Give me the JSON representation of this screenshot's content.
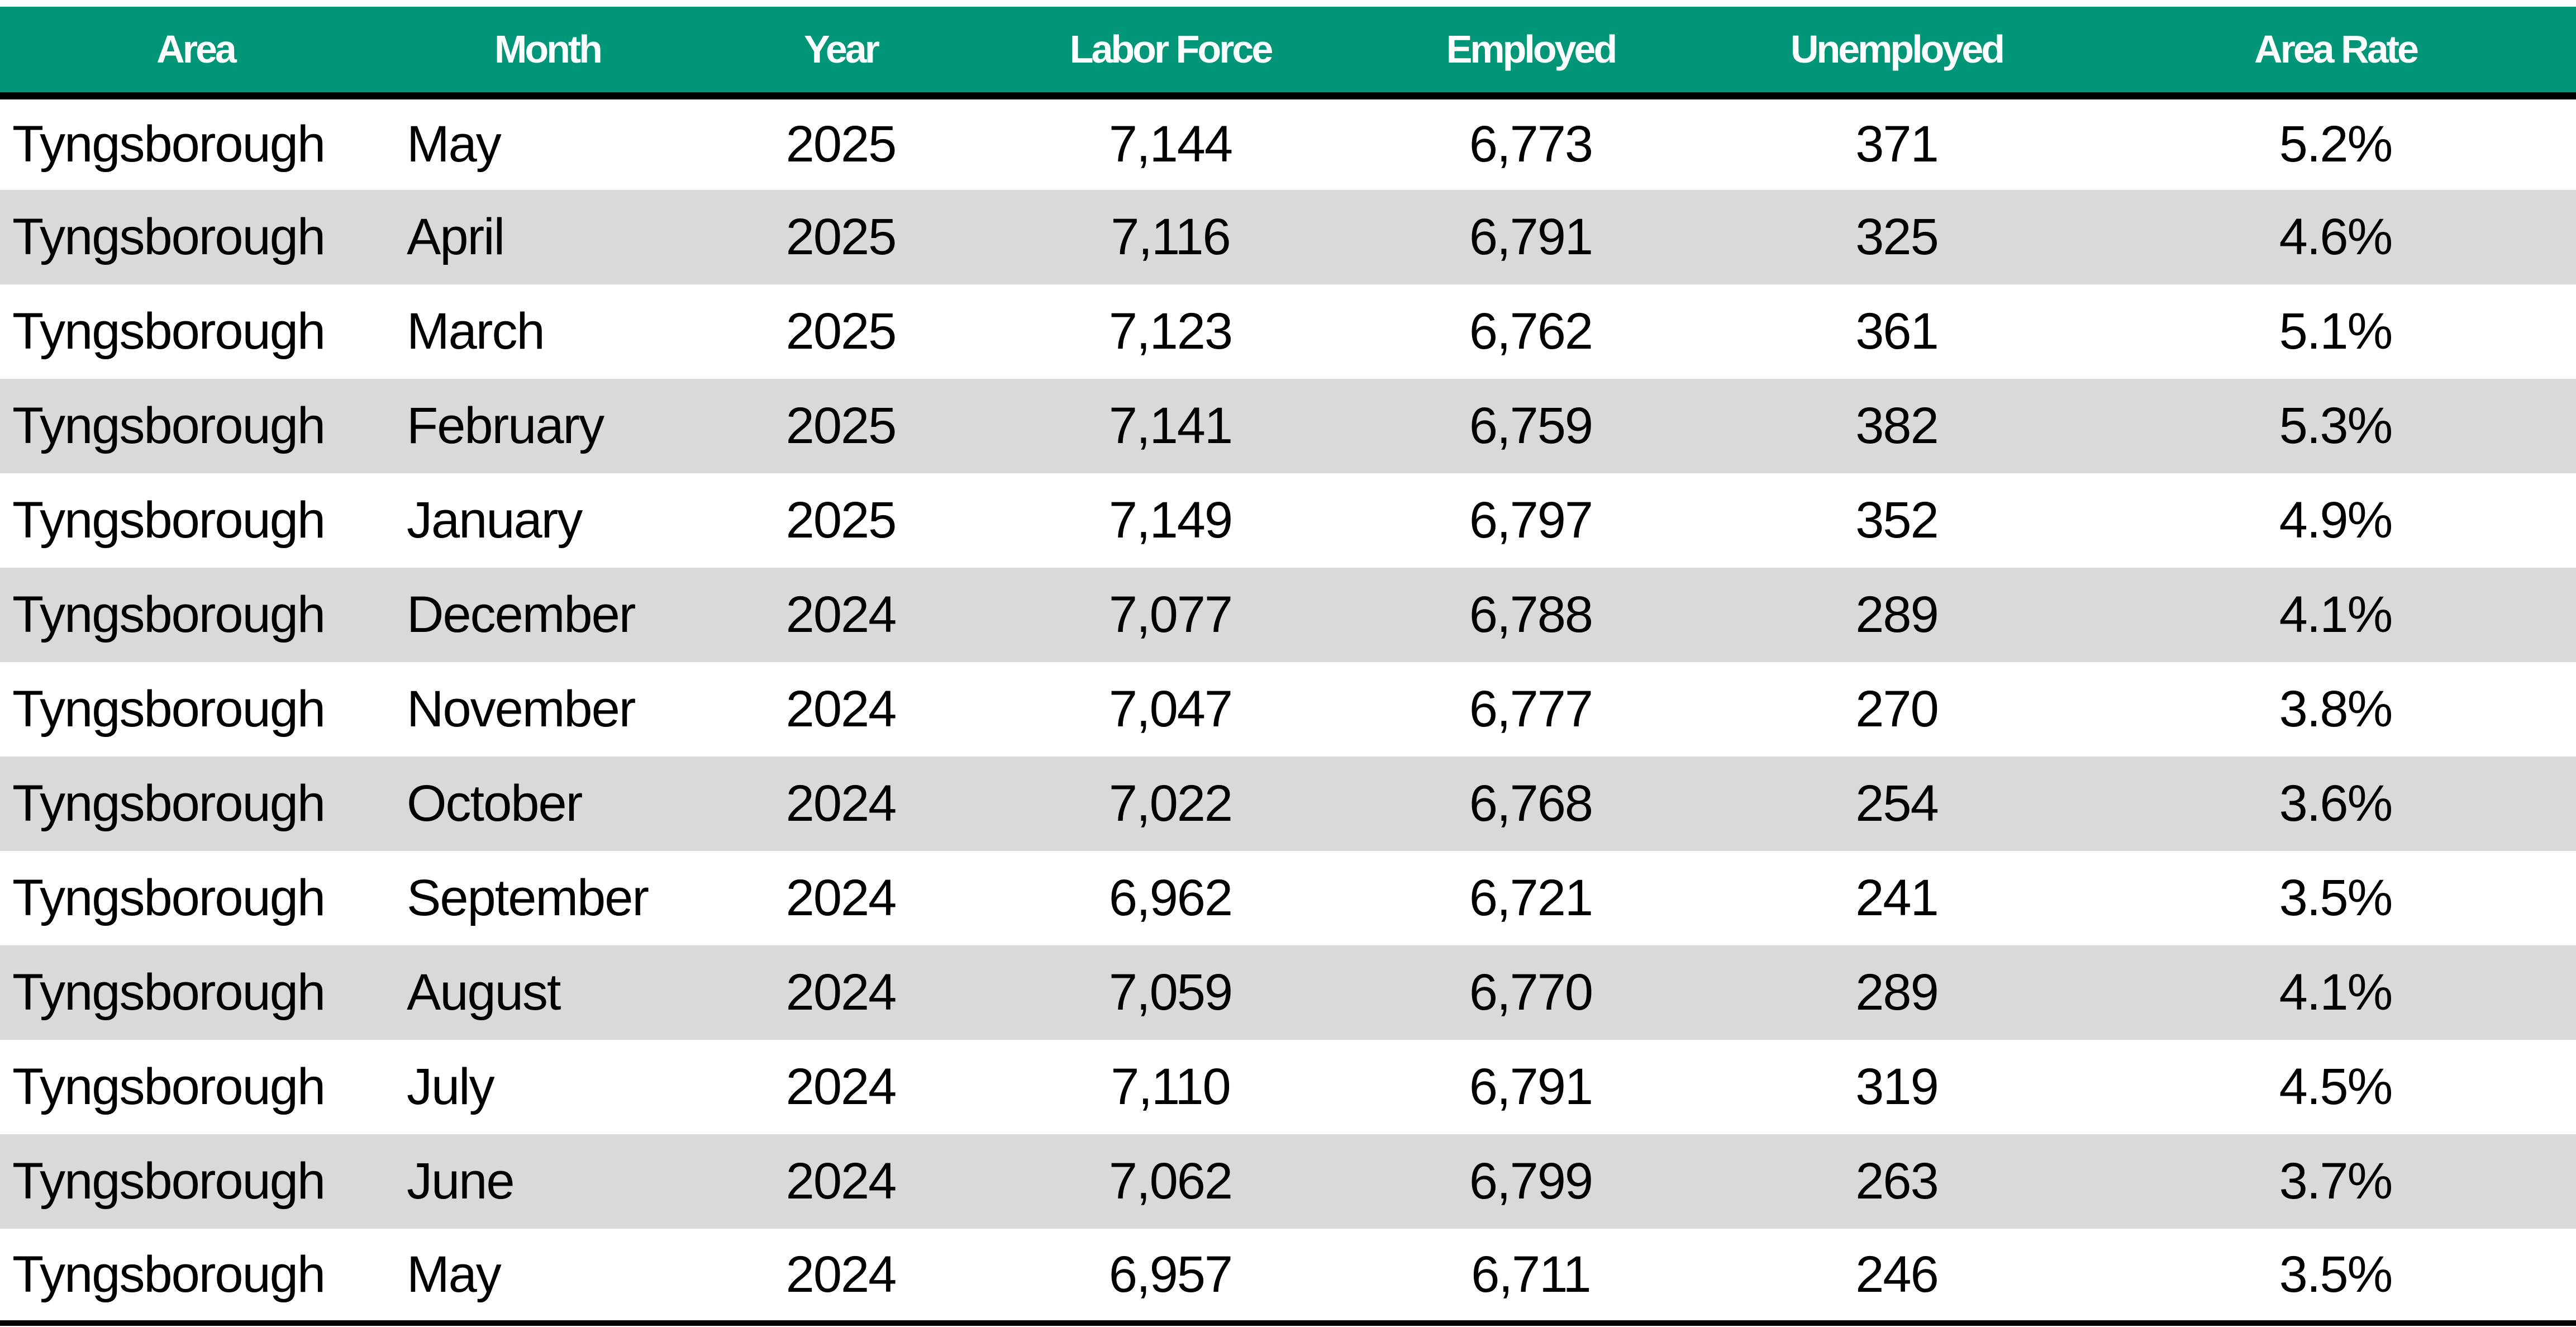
{
  "table": {
    "headers": [
      "Area",
      "Month",
      "Year",
      "Labor Force",
      "Employed",
      "Unemployed",
      "Area Rate"
    ],
    "rows": [
      [
        "Tyngsborough",
        "May",
        "2025",
        "7,144",
        "6,773",
        "371",
        "5.2%"
      ],
      [
        "Tyngsborough",
        "April",
        "2025",
        "7,116",
        "6,791",
        "325",
        "4.6%"
      ],
      [
        "Tyngsborough",
        "March",
        "2025",
        "7,123",
        "6,762",
        "361",
        "5.1%"
      ],
      [
        "Tyngsborough",
        "February",
        "2025",
        "7,141",
        "6,759",
        "382",
        "5.3%"
      ],
      [
        "Tyngsborough",
        "January",
        "2025",
        "7,149",
        "6,797",
        "352",
        "4.9%"
      ],
      [
        "Tyngsborough",
        "December",
        "2024",
        "7,077",
        "6,788",
        "289",
        "4.1%"
      ],
      [
        "Tyngsborough",
        "November",
        "2024",
        "7,047",
        "6,777",
        "270",
        "3.8%"
      ],
      [
        "Tyngsborough",
        "October",
        "2024",
        "7,022",
        "6,768",
        "254",
        "3.6%"
      ],
      [
        "Tyngsborough",
        "September",
        "2024",
        "6,962",
        "6,721",
        "241",
        "3.5%"
      ],
      [
        "Tyngsborough",
        "August",
        "2024",
        "7,059",
        "6,770",
        "289",
        "4.1%"
      ],
      [
        "Tyngsborough",
        "July",
        "2024",
        "7,110",
        "6,791",
        "319",
        "4.5%"
      ],
      [
        "Tyngsborough",
        "June",
        "2024",
        "7,062",
        "6,799",
        "263",
        "3.7%"
      ],
      [
        "Tyngsborough",
        "May",
        "2024",
        "6,957",
        "6,711",
        "246",
        "3.5%"
      ]
    ]
  },
  "colors": {
    "header_background": "#009677",
    "header_text": "#ffffff",
    "row_stripe": "#d9d9d9",
    "rule": "#000000"
  }
}
